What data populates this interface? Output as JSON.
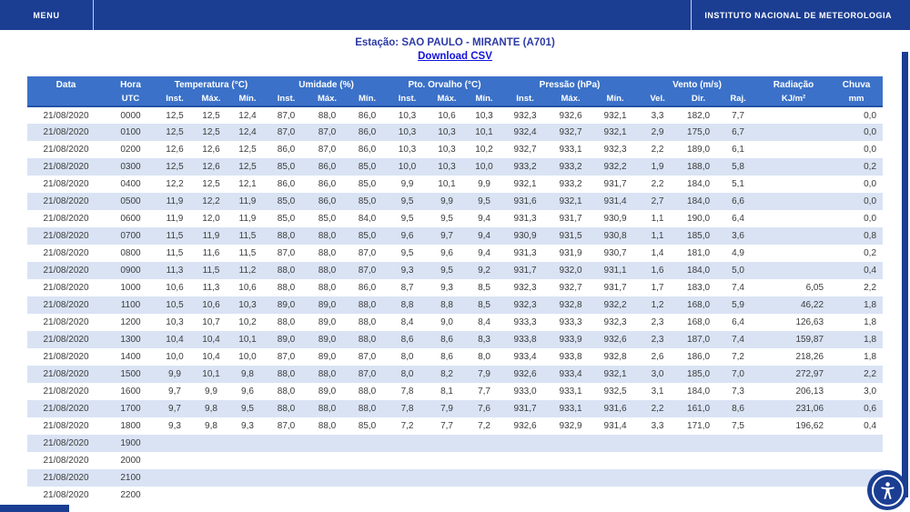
{
  "topbar": {
    "menu_label": "MENU",
    "institute_label": "INSTITUTO NACIONAL DE METEOROLOGIA"
  },
  "station": {
    "title": "Estação: SAO PAULO - MIRANTE (A701)",
    "download_label": "Download CSV"
  },
  "icons": {
    "accessibility": "accessibility-person-icon"
  },
  "colors": {
    "topbar_bg": "#1b3e93",
    "table_header_bg": "#3b71c8",
    "row_alt_bg": "#d9e3f4",
    "title_text": "#2c3aa6",
    "link_text": "#1212dd",
    "body_text": "#3c3c3c",
    "header_divider": "#2253a8"
  },
  "table": {
    "header_groups": [
      {
        "label": "Data",
        "colspan": 1
      },
      {
        "label": "Hora",
        "colspan": 1
      },
      {
        "label": "Temperatura (°C)",
        "colspan": 3
      },
      {
        "label": "Umidade (%)",
        "colspan": 3
      },
      {
        "label": "Pto. Orvalho (°C)",
        "colspan": 3
      },
      {
        "label": "Pressão (hPa)",
        "colspan": 3
      },
      {
        "label": "Vento (m/s)",
        "colspan": 3
      },
      {
        "label": "Radiação",
        "colspan": 1
      },
      {
        "label": "Chuva",
        "colspan": 1
      }
    ],
    "sub_headers": [
      "",
      "UTC",
      "Inst.",
      "Máx.",
      "Mín.",
      "Inst.",
      "Máx.",
      "Mín.",
      "Inst.",
      "Máx.",
      "Mín.",
      "Inst.",
      "Máx.",
      "Mín.",
      "Vel.",
      "Dir.",
      "Raj.",
      "KJ/m²",
      "mm"
    ],
    "rows": [
      [
        "21/08/2020",
        "0000",
        "12,5",
        "12,5",
        "12,4",
        "87,0",
        "88,0",
        "86,0",
        "10,3",
        "10,6",
        "10,3",
        "932,3",
        "932,6",
        "932,1",
        "3,3",
        "182,0",
        "7,7",
        "",
        "0,0"
      ],
      [
        "21/08/2020",
        "0100",
        "12,5",
        "12,5",
        "12,4",
        "87,0",
        "87,0",
        "86,0",
        "10,3",
        "10,3",
        "10,1",
        "932,4",
        "932,7",
        "932,1",
        "2,9",
        "175,0",
        "6,7",
        "",
        "0,0"
      ],
      [
        "21/08/2020",
        "0200",
        "12,6",
        "12,6",
        "12,5",
        "86,0",
        "87,0",
        "86,0",
        "10,3",
        "10,3",
        "10,2",
        "932,7",
        "933,1",
        "932,3",
        "2,2",
        "189,0",
        "6,1",
        "",
        "0,0"
      ],
      [
        "21/08/2020",
        "0300",
        "12,5",
        "12,6",
        "12,5",
        "85,0",
        "86,0",
        "85,0",
        "10,0",
        "10,3",
        "10,0",
        "933,2",
        "933,2",
        "932,2",
        "1,9",
        "188,0",
        "5,8",
        "",
        "0,2"
      ],
      [
        "21/08/2020",
        "0400",
        "12,2",
        "12,5",
        "12,1",
        "86,0",
        "86,0",
        "85,0",
        "9,9",
        "10,1",
        "9,9",
        "932,1",
        "933,2",
        "931,7",
        "2,2",
        "184,0",
        "5,1",
        "",
        "0,0"
      ],
      [
        "21/08/2020",
        "0500",
        "11,9",
        "12,2",
        "11,9",
        "85,0",
        "86,0",
        "85,0",
        "9,5",
        "9,9",
        "9,5",
        "931,6",
        "932,1",
        "931,4",
        "2,7",
        "184,0",
        "6,6",
        "",
        "0,0"
      ],
      [
        "21/08/2020",
        "0600",
        "11,9",
        "12,0",
        "11,9",
        "85,0",
        "85,0",
        "84,0",
        "9,5",
        "9,5",
        "9,4",
        "931,3",
        "931,7",
        "930,9",
        "1,1",
        "190,0",
        "6,4",
        "",
        "0,0"
      ],
      [
        "21/08/2020",
        "0700",
        "11,5",
        "11,9",
        "11,5",
        "88,0",
        "88,0",
        "85,0",
        "9,6",
        "9,7",
        "9,4",
        "930,9",
        "931,5",
        "930,8",
        "1,1",
        "185,0",
        "3,6",
        "",
        "0,8"
      ],
      [
        "21/08/2020",
        "0800",
        "11,5",
        "11,6",
        "11,5",
        "87,0",
        "88,0",
        "87,0",
        "9,5",
        "9,6",
        "9,4",
        "931,3",
        "931,9",
        "930,7",
        "1,4",
        "181,0",
        "4,9",
        "",
        "0,2"
      ],
      [
        "21/08/2020",
        "0900",
        "11,3",
        "11,5",
        "11,2",
        "88,0",
        "88,0",
        "87,0",
        "9,3",
        "9,5",
        "9,2",
        "931,7",
        "932,0",
        "931,1",
        "1,6",
        "184,0",
        "5,0",
        "",
        "0,4"
      ],
      [
        "21/08/2020",
        "1000",
        "10,6",
        "11,3",
        "10,6",
        "88,0",
        "88,0",
        "86,0",
        "8,7",
        "9,3",
        "8,5",
        "932,3",
        "932,7",
        "931,7",
        "1,7",
        "183,0",
        "7,4",
        "6,05",
        "2,2"
      ],
      [
        "21/08/2020",
        "1100",
        "10,5",
        "10,6",
        "10,3",
        "89,0",
        "89,0",
        "88,0",
        "8,8",
        "8,8",
        "8,5",
        "932,3",
        "932,8",
        "932,2",
        "1,2",
        "168,0",
        "5,9",
        "46,22",
        "1,8"
      ],
      [
        "21/08/2020",
        "1200",
        "10,3",
        "10,7",
        "10,2",
        "88,0",
        "89,0",
        "88,0",
        "8,4",
        "9,0",
        "8,4",
        "933,3",
        "933,3",
        "932,3",
        "2,3",
        "168,0",
        "6,4",
        "126,63",
        "1,8"
      ],
      [
        "21/08/2020",
        "1300",
        "10,4",
        "10,4",
        "10,1",
        "89,0",
        "89,0",
        "88,0",
        "8,6",
        "8,6",
        "8,3",
        "933,8",
        "933,9",
        "932,6",
        "2,3",
        "187,0",
        "7,4",
        "159,87",
        "1,8"
      ],
      [
        "21/08/2020",
        "1400",
        "10,0",
        "10,4",
        "10,0",
        "87,0",
        "89,0",
        "87,0",
        "8,0",
        "8,6",
        "8,0",
        "933,4",
        "933,8",
        "932,8",
        "2,6",
        "186,0",
        "7,2",
        "218,26",
        "1,8"
      ],
      [
        "21/08/2020",
        "1500",
        "9,9",
        "10,1",
        "9,8",
        "88,0",
        "88,0",
        "87,0",
        "8,0",
        "8,2",
        "7,9",
        "932,6",
        "933,4",
        "932,1",
        "3,0",
        "185,0",
        "7,0",
        "272,97",
        "2,2"
      ],
      [
        "21/08/2020",
        "1600",
        "9,7",
        "9,9",
        "9,6",
        "88,0",
        "89,0",
        "88,0",
        "7,8",
        "8,1",
        "7,7",
        "933,0",
        "933,1",
        "932,5",
        "3,1",
        "184,0",
        "7,3",
        "206,13",
        "3,0"
      ],
      [
        "21/08/2020",
        "1700",
        "9,7",
        "9,8",
        "9,5",
        "88,0",
        "88,0",
        "88,0",
        "7,8",
        "7,9",
        "7,6",
        "931,7",
        "933,1",
        "931,6",
        "2,2",
        "161,0",
        "8,6",
        "231,06",
        "0,6"
      ],
      [
        "21/08/2020",
        "1800",
        "9,3",
        "9,8",
        "9,3",
        "87,0",
        "88,0",
        "85,0",
        "7,2",
        "7,7",
        "7,2",
        "932,6",
        "932,9",
        "931,4",
        "3,3",
        "171,0",
        "7,5",
        "196,62",
        "0,4"
      ],
      [
        "21/08/2020",
        "1900",
        "",
        "",
        "",
        "",
        "",
        "",
        "",
        "",
        "",
        "",
        "",
        "",
        "",
        "",
        "",
        "",
        ""
      ],
      [
        "21/08/2020",
        "2000",
        "",
        "",
        "",
        "",
        "",
        "",
        "",
        "",
        "",
        "",
        "",
        "",
        "",
        "",
        "",
        "",
        ""
      ],
      [
        "21/08/2020",
        "2100",
        "",
        "",
        "",
        "",
        "",
        "",
        "",
        "",
        "",
        "",
        "",
        "",
        "",
        "",
        "",
        "",
        ""
      ],
      [
        "21/08/2020",
        "2200",
        "",
        "",
        "",
        "",
        "",
        "",
        "",
        "",
        "",
        "",
        "",
        "",
        "",
        "",
        "",
        "",
        ""
      ]
    ]
  }
}
